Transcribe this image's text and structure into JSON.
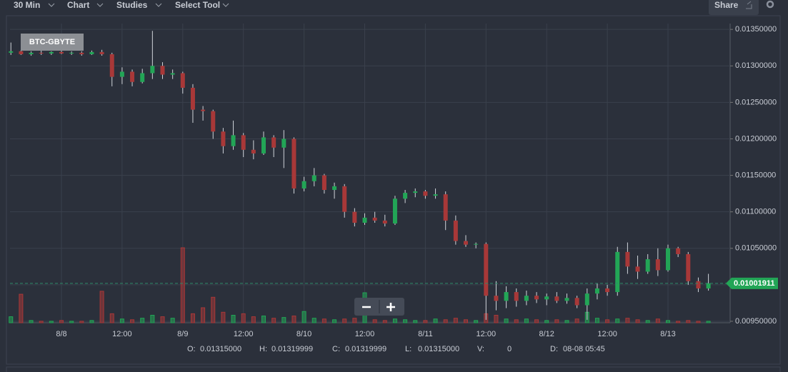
{
  "toolbar": {
    "interval": "30 Min",
    "chart": "Chart",
    "studies": "Studies",
    "tool": "Select Tool",
    "share": "Share"
  },
  "chart_data": {
    "type": "candlestick",
    "symbol": "BTC-GBYTE",
    "categories": [
      null,
      null,
      null,
      null,
      null,
      "8/8",
      null,
      null,
      null,
      null,
      null,
      "12:00",
      null,
      null,
      null,
      null,
      null,
      "8/9",
      null,
      null,
      null,
      null,
      null,
      "12:00",
      null,
      null,
      null,
      null,
      null,
      "8/10",
      null,
      null,
      null,
      null,
      null,
      "12:00",
      null,
      null,
      null,
      null,
      null,
      "8/11",
      null,
      null,
      null,
      null,
      null,
      "12:00",
      null,
      null,
      null,
      null,
      null,
      "8/12",
      null,
      null,
      null,
      null,
      null,
      "12:00",
      null,
      null,
      null,
      null,
      null,
      "8/13",
      null,
      null,
      null,
      null
    ],
    "open": [
      0.01318,
      0.0132,
      0.01316,
      0.01318,
      0.01317,
      0.01319,
      0.01317,
      0.01318,
      0.01316,
      0.01319,
      0.01316,
      0.01285,
      0.01292,
      0.01278,
      0.0129,
      0.013,
      0.01288,
      0.0129,
      0.0127,
      0.0124,
      0.01238,
      0.0121,
      0.0119,
      0.01205,
      0.01185,
      0.0118,
      0.01202,
      0.01188,
      0.012,
      0.01132,
      0.01142,
      0.0115,
      0.0113,
      0.01135,
      0.011,
      0.01085,
      0.01092,
      0.01088,
      0.01084,
      0.01118,
      0.01126,
      0.01128,
      0.01122,
      0.01124,
      0.01088,
      0.0106,
      0.01055,
      0.01056,
      0.00985,
      0.00978,
      0.0099,
      0.00978,
      0.00985,
      0.0098,
      0.00984,
      0.00978,
      0.00982,
      0.00972,
      0.00988,
      0.00995,
      0.0099,
      0.01045,
      0.01025,
      0.01018,
      0.01035,
      0.0102,
      0.0105,
      0.01042,
      0.01005,
      0.00995
    ],
    "high": [
      0.01332,
      0.01322,
      0.0132,
      0.01321,
      0.0132,
      0.01321,
      0.0132,
      0.0132,
      0.01321,
      0.01322,
      0.01318,
      0.01298,
      0.01295,
      0.01296,
      0.01348,
      0.01305,
      0.01295,
      0.01292,
      0.01275,
      0.01245,
      0.0124,
      0.01215,
      0.01225,
      0.01208,
      0.01198,
      0.0121,
      0.01205,
      0.01212,
      0.01202,
      0.01148,
      0.0116,
      0.01152,
      0.0114,
      0.01138,
      0.01105,
      0.01098,
      0.011,
      0.01096,
      0.01122,
      0.0113,
      0.01132,
      0.0113,
      0.01132,
      0.01128,
      0.01095,
      0.01068,
      0.01058,
      0.01058,
      0.01005,
      0.00998,
      0.00995,
      0.00992,
      0.0099,
      0.00988,
      0.0099,
      0.00988,
      0.00985,
      0.00995,
      0.01002,
      0.01,
      0.01052,
      0.01058,
      0.0104,
      0.01042,
      0.0105,
      0.01055,
      0.01052,
      0.01045,
      0.0101,
      0.01015
    ],
    "low": [
      0.01315,
      0.01315,
      0.01314,
      0.01315,
      0.01315,
      0.01316,
      0.01315,
      0.01314,
      0.01315,
      0.01314,
      0.01272,
      0.01275,
      0.01272,
      0.01276,
      0.01282,
      0.01282,
      0.01282,
      0.01262,
      0.01222,
      0.01225,
      0.012,
      0.0118,
      0.01185,
      0.01175,
      0.01172,
      0.01178,
      0.01175,
      0.0116,
      0.01125,
      0.01128,
      0.01135,
      0.01125,
      0.01118,
      0.01092,
      0.0108,
      0.01082,
      0.01085,
      0.0108,
      0.01082,
      0.01112,
      0.0112,
      0.01118,
      0.01118,
      0.01075,
      0.01055,
      0.01052,
      0.0105,
      0.00952,
      0.00965,
      0.00968,
      0.0097,
      0.00972,
      0.00975,
      0.00972,
      0.00975,
      0.00974,
      0.00968,
      0.00952,
      0.0098,
      0.00985,
      0.00985,
      0.01015,
      0.01008,
      0.01015,
      0.01012,
      0.01018,
      0.01038,
      0.01,
      0.0099,
      0.00992
    ],
    "close": [
      0.0132,
      0.01316,
      0.01318,
      0.01317,
      0.01319,
      0.01317,
      0.01318,
      0.01316,
      0.01319,
      0.01316,
      0.01285,
      0.01292,
      0.01278,
      0.0129,
      0.013,
      0.01288,
      0.0129,
      0.0127,
      0.0124,
      0.01238,
      0.0121,
      0.0119,
      0.01205,
      0.01185,
      0.0118,
      0.01202,
      0.01188,
      0.012,
      0.01132,
      0.01142,
      0.0115,
      0.0113,
      0.01135,
      0.011,
      0.01085,
      0.01092,
      0.01088,
      0.01084,
      0.01118,
      0.01126,
      0.01128,
      0.01122,
      0.01124,
      0.01088,
      0.0106,
      0.01055,
      0.01056,
      0.00985,
      0.00978,
      0.0099,
      0.00978,
      0.00985,
      0.0098,
      0.00984,
      0.00978,
      0.00982,
      0.00972,
      0.00988,
      0.00995,
      0.0099,
      0.01045,
      0.01025,
      0.01018,
      0.01035,
      0.0102,
      0.0105,
      0.01042,
      0.01005,
      0.00995,
      0.01002
    ],
    "volume": [
      8,
      38,
      3,
      2,
      2,
      3,
      2,
      2,
      3,
      42,
      12,
      5,
      4,
      6,
      10,
      8,
      6,
      100,
      12,
      20,
      34,
      14,
      10,
      12,
      8,
      9,
      6,
      7,
      9,
      15,
      6,
      5,
      4,
      5,
      6,
      40,
      4,
      3,
      5,
      4,
      3,
      3,
      5,
      4,
      6,
      4,
      3,
      12,
      10,
      5,
      4,
      5,
      4,
      3,
      4,
      3,
      5,
      14,
      6,
      4,
      5,
      6,
      4,
      3,
      5,
      3,
      2,
      3,
      2,
      2
    ],
    "up_color": "#22a556",
    "down_color": "#a83838",
    "ylim": [
      0.00948,
      0.01358
    ],
    "yticks": [
      {
        "value": 0.0095,
        "label": "0.00950000"
      },
      {
        "value": 0.01,
        "label": "0.01000000"
      },
      {
        "value": 0.0105,
        "label": "0.01050000"
      },
      {
        "value": 0.011,
        "label": "0.01100000"
      },
      {
        "value": 0.0115,
        "label": "0.01150000"
      },
      {
        "value": 0.012,
        "label": "0.01200000"
      },
      {
        "value": 0.0125,
        "label": "0.01250000"
      },
      {
        "value": 0.013,
        "label": "0.01300000"
      },
      {
        "value": 0.0135,
        "label": "0.01350000"
      }
    ],
    "grid": true,
    "last_price": {
      "value": 0.01001911,
      "label": "0.01001911"
    },
    "ohlc_info": [
      {
        "label": "O:",
        "value": "0.01315000"
      },
      {
        "label": "H:",
        "value": "0.01319999"
      },
      {
        "label": "C:",
        "value": "0.01319999"
      },
      {
        "label": "L:",
        "value": "0.01315000"
      },
      {
        "label": "V:",
        "value": "0"
      },
      {
        "label": "D:",
        "value": "08-08 05:45"
      }
    ]
  }
}
